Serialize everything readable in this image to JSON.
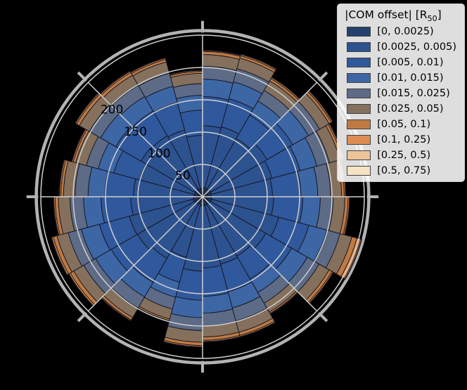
{
  "background": "#000000",
  "legend": {
    "title_prefix": "|COM offset| [R",
    "title_sub": "50",
    "title_suffix": "]",
    "entries": [
      {
        "label": "[0, 0.0025)",
        "color": "#24406d"
      },
      {
        "label": "[0.0025, 0.005)",
        "color": "#2d5290"
      },
      {
        "label": "[0.005, 0.01)",
        "color": "#30589c"
      },
      {
        "label": "[0.01, 0.015)",
        "color": "#3d66a5"
      },
      {
        "label": "[0.015, 0.025)",
        "color": "#5d6b87"
      },
      {
        "label": "[0.025, 0.05)",
        "color": "#84705d"
      },
      {
        "label": "[0.05, 0.1)",
        "color": "#bf7a43"
      },
      {
        "label": "[0.1, 0.25)",
        "color": "#dd8e51"
      },
      {
        "label": "[0.25, 0.5)",
        "color": "#edc399"
      },
      {
        "label": "[0.5, 0.75)",
        "color": "#f5e3c4"
      }
    ]
  },
  "chart_data": {
    "type": "polar_stacked_bar",
    "title": "",
    "n_sectors": 24,
    "sector_width_deg": 15,
    "angle_origin": "east_counterclockwise",
    "radial_axis": {
      "ticks": [
        50,
        100,
        150,
        200
      ],
      "rmax": 250,
      "tick_label_angle_deg": 135
    },
    "grid": true,
    "spoke_interval_deg": 45,
    "legend_position": "upper right",
    "series": [
      {
        "name": "[0, 0.0025)",
        "color": "#24406d",
        "values": [
          13,
          14,
          15,
          13,
          14,
          14,
          12,
          13,
          14,
          14,
          13,
          13,
          14,
          15,
          14,
          13,
          12,
          14,
          13,
          14,
          13,
          14,
          15,
          14
        ]
      },
      {
        "name": "[0.0025, 0.005)",
        "color": "#2d5290",
        "values": [
          95,
          97,
          100,
          91,
          98,
          96,
          83,
          94,
          95,
          96,
          88,
          94,
          97,
          102,
          102,
          97,
          85,
          101,
          97,
          94,
          93,
          99,
          107,
          96
        ]
      },
      {
        "name": "[0.005, 0.01)",
        "color": "#30589c",
        "values": [
          44,
          45,
          46,
          42,
          45,
          45,
          39,
          44,
          44,
          45,
          41,
          44,
          46,
          48,
          47,
          43,
          40,
          45,
          44,
          44,
          41,
          46,
          48,
          45
        ]
      },
      {
        "name": "[0.01, 0.015)",
        "color": "#3d66a5",
        "values": [
          26,
          27,
          28,
          25,
          27,
          27,
          23,
          26,
          26,
          27,
          25,
          26,
          27,
          29,
          28,
          26,
          24,
          27,
          26,
          26,
          24,
          28,
          29,
          27
        ]
      },
      {
        "name": "[0.015, 0.025)",
        "color": "#5d6b87",
        "values": [
          20,
          20,
          20,
          19,
          21,
          20,
          18,
          21,
          20,
          20,
          19,
          20,
          21,
          21,
          21,
          20,
          19,
          20,
          20,
          21,
          19,
          21,
          21,
          20
        ]
      },
      {
        "name": "[0.025, 0.05)",
        "color": "#84705d",
        "values": [
          17,
          17,
          17,
          17,
          17,
          18,
          16,
          18,
          18,
          18,
          17,
          18,
          18,
          18,
          18,
          17,
          16,
          18,
          17,
          18,
          16,
          18,
          19,
          18
        ]
      },
      {
        "name": "[0.05, 0.1)",
        "color": "#bf7a43",
        "values": [
          4,
          4,
          4,
          4,
          4,
          5,
          3,
          4,
          5,
          5,
          4,
          4,
          5,
          6,
          6,
          4,
          2.5,
          5,
          5,
          5,
          2.5,
          5,
          8,
          5
        ]
      },
      {
        "name": "[0.1, 0.25)",
        "color": "#dd8e51",
        "values": [
          2,
          2,
          2,
          2,
          2,
          1.5,
          1.5,
          2,
          2,
          2,
          2,
          2,
          2,
          2.5,
          2.5,
          1.5,
          1,
          2,
          2,
          2,
          1,
          2,
          6,
          2
        ]
      },
      {
        "name": "[0.25, 0.5)",
        "color": "#edc399",
        "values": [
          0.7,
          0.7,
          0.7,
          0.7,
          0.7,
          0.4,
          0.4,
          0.7,
          0.7,
          0.7,
          0.7,
          0.7,
          0.7,
          0.8,
          0.8,
          0.4,
          0.4,
          0.7,
          0.7,
          0.7,
          0.4,
          0.7,
          1.5,
          0.7
        ]
      },
      {
        "name": "[0.5, 0.75)",
        "color": "#f5e3c4",
        "values": [
          0.3,
          0.3,
          0.3,
          0.3,
          0.3,
          0.1,
          0.1,
          0.3,
          0.3,
          0.3,
          0.3,
          0.3,
          0.3,
          0.3,
          0.3,
          0.1,
          0.1,
          0.3,
          0.3,
          0.3,
          0.1,
          0.3,
          0.5,
          0.3
        ]
      }
    ]
  },
  "style_colors": {
    "grid": "#cfcfcf",
    "spine": "#b3b3b3",
    "bar_edge": "#14141e",
    "tick_label": "#000000"
  }
}
